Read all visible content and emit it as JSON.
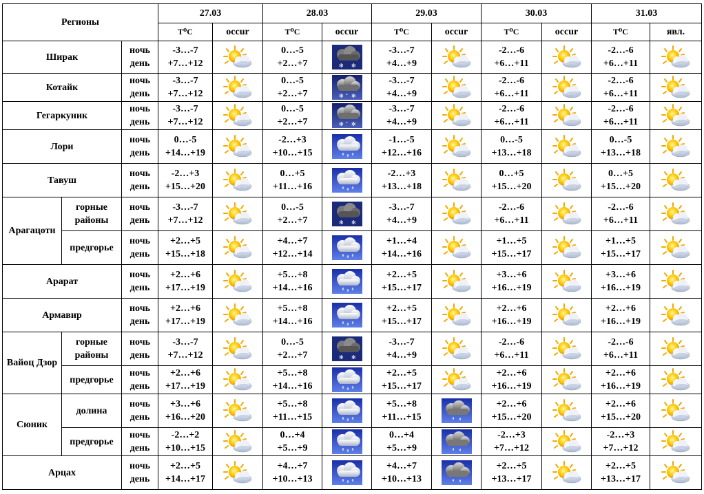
{
  "header": {
    "regions_label": "Регионы",
    "dates": [
      "27.03",
      "28.03",
      "29.03",
      "30.03",
      "31.03"
    ],
    "temp_label": "T⁰C",
    "phen_labels": [
      "occur",
      "occur",
      "occur",
      "occur",
      "явл."
    ]
  },
  "period": {
    "night": "ночь",
    "day": "день"
  },
  "icon_legend": {
    "sun": "partly-sunny-icon",
    "rain": "rain-cloud-icon",
    "snow": "snow-cloud-icon",
    "dark": "snow-cloud-dark-icon",
    "cloud": "overcast-rain-icon"
  },
  "regions": [
    {
      "name": "Ширак",
      "sub": "",
      "group": "",
      "days": [
        {
          "n": "-3…-7",
          "d": "+7…+12",
          "icon": "sun"
        },
        {
          "n": "0…-5",
          "d": "+2…+7",
          "icon": "dark"
        },
        {
          "n": "-3…-7",
          "d": "+4…+9",
          "icon": "sun"
        },
        {
          "n": "-2…-6",
          "d": "+6…+11",
          "icon": "sun"
        },
        {
          "n": "-2…-6",
          "d": "+6…+11",
          "icon": "sun"
        }
      ]
    },
    {
      "name": "Котайк",
      "sub": "",
      "group": "",
      "days": [
        {
          "n": "-3…-7",
          "d": "+7…+12",
          "icon": "sun"
        },
        {
          "n": "0…-5",
          "d": "+2…+7",
          "icon": "snow"
        },
        {
          "n": "-3…-7",
          "d": "+4…+9",
          "icon": "sun"
        },
        {
          "n": "-2…-6",
          "d": "+6…+11",
          "icon": "sun"
        },
        {
          "n": "-2…-6",
          "d": "+6…+11",
          "icon": "sun"
        }
      ]
    },
    {
      "name": "Гегаркуник",
      "sub": "",
      "group": "",
      "days": [
        {
          "n": "-3…-7",
          "d": "+7…+12",
          "icon": "sun"
        },
        {
          "n": "0…-5",
          "d": "+2…+7",
          "icon": "snow"
        },
        {
          "n": "-3…-7",
          "d": "+4…+9",
          "icon": "sun"
        },
        {
          "n": "-2…-6",
          "d": "+6…+11",
          "icon": "sun"
        },
        {
          "n": "-2…-6",
          "d": "+6…+11",
          "icon": "sun"
        }
      ]
    },
    {
      "name": "Лори",
      "sub": "",
      "group": "",
      "days": [
        {
          "n": "0…-5",
          "d": "+14…+19",
          "icon": "sun"
        },
        {
          "n": "-2…+3",
          "d": "+10…+15",
          "icon": "rain"
        },
        {
          "n": "-1…-5",
          "d": "+12…+16",
          "icon": "sun"
        },
        {
          "n": "0…-5",
          "d": "+13…+18",
          "icon": "sun"
        },
        {
          "n": "0…-5",
          "d": "+13…+18",
          "icon": "sun"
        }
      ]
    },
    {
      "name": "Тавуш",
      "sub": "",
      "group": "",
      "days": [
        {
          "n": "-2…+3",
          "d": "+15…+20",
          "icon": "sun"
        },
        {
          "n": "0…+5",
          "d": "+11…+16",
          "icon": "rain"
        },
        {
          "n": "-2…+3",
          "d": "+13…+18",
          "icon": "sun"
        },
        {
          "n": "0…+5",
          "d": "+15…+20",
          "icon": "sun"
        },
        {
          "n": "0…+5",
          "d": "+15…+20",
          "icon": "sun"
        }
      ]
    },
    {
      "name": "",
      "sub": "горные районы",
      "group": "Арагацотн",
      "days": [
        {
          "n": "-3…-7",
          "d": "+7…+12",
          "icon": "sun"
        },
        {
          "n": "0…-5",
          "d": "+2…+7",
          "icon": "dark"
        },
        {
          "n": "-3…-7",
          "d": "+4…+9",
          "icon": "sun"
        },
        {
          "n": "-2…-6",
          "d": "+6…+11",
          "icon": "sun"
        },
        {
          "n": "-2…-6",
          "d": "+6…+11",
          "icon": "sun"
        }
      ]
    },
    {
      "name": "",
      "sub": "предгорье",
      "group": "Арагацотн",
      "days": [
        {
          "n": "+2…+5",
          "d": "+15…+18",
          "icon": "sun"
        },
        {
          "n": "+4…+7",
          "d": "+12…+14",
          "icon": "rain"
        },
        {
          "n": "+1…+4",
          "d": "+14…+16",
          "icon": "sun"
        },
        {
          "n": "+1…+5",
          "d": "+15…+17",
          "icon": "sun"
        },
        {
          "n": "+1…+5",
          "d": "+15…+17",
          "icon": "sun"
        }
      ]
    },
    {
      "name": "Арарат",
      "sub": "",
      "group": "",
      "days": [
        {
          "n": "+2…+6",
          "d": "+17…+19",
          "icon": "sun"
        },
        {
          "n": "+5…+8",
          "d": "+14…+16",
          "icon": "rain"
        },
        {
          "n": "+2…+5",
          "d": "+15…+17",
          "icon": "sun"
        },
        {
          "n": "+3…+6",
          "d": "+16…+19",
          "icon": "sun"
        },
        {
          "n": "+3…+6",
          "d": "+16…+19",
          "icon": "sun"
        }
      ]
    },
    {
      "name": "Армавир",
      "sub": "",
      "group": "",
      "days": [
        {
          "n": "+2…+6",
          "d": "+17…+19",
          "icon": "sun"
        },
        {
          "n": "+5…+8",
          "d": "+14…+16",
          "icon": "rain"
        },
        {
          "n": "+2…+5",
          "d": "+15…+17",
          "icon": "sun"
        },
        {
          "n": "+2…+6",
          "d": "+16…+19",
          "icon": "sun"
        },
        {
          "n": "+2…+6",
          "d": "+16…+19",
          "icon": "sun"
        }
      ]
    },
    {
      "name": "",
      "sub": "горные районы",
      "group": "Вайоц Дзор",
      "days": [
        {
          "n": "-3…-7",
          "d": "+7…+12",
          "icon": "sun"
        },
        {
          "n": "0…-5",
          "d": "+2…+7",
          "icon": "dark"
        },
        {
          "n": "-3…-7",
          "d": "+4…+9",
          "icon": "sun"
        },
        {
          "n": "-2…-6",
          "d": "+6…+11",
          "icon": "sun"
        },
        {
          "n": "-2…-6",
          "d": "+6…+11",
          "icon": "sun"
        }
      ]
    },
    {
      "name": "",
      "sub": "предгорье",
      "group": "Вайоц Дзор",
      "days": [
        {
          "n": "+2…+6",
          "d": "+17…+19",
          "icon": "sun"
        },
        {
          "n": "+5…+8",
          "d": "+14…+16",
          "icon": "rain"
        },
        {
          "n": "+2…+5",
          "d": "+15…+17",
          "icon": "sun"
        },
        {
          "n": "+2…+6",
          "d": "+16…+19",
          "icon": "sun"
        },
        {
          "n": "+2…+6",
          "d": "+16…+19",
          "icon": "sun"
        }
      ]
    },
    {
      "name": "",
      "sub": "долина",
      "group": "Сюник",
      "days": [
        {
          "n": "+3…+6",
          "d": "+16…+20",
          "icon": "sun"
        },
        {
          "n": "+5…+8",
          "d": "+11…+15",
          "icon": "rain"
        },
        {
          "n": "+5…+8",
          "d": "+11…+15",
          "icon": "cloud"
        },
        {
          "n": "+2…+6",
          "d": "+15…+20",
          "icon": "sun"
        },
        {
          "n": "+2…+6",
          "d": "+15…+20",
          "icon": "sun"
        }
      ]
    },
    {
      "name": "",
      "sub": "предгорье",
      "group": "Сюник",
      "days": [
        {
          "n": "-2…+2",
          "d": "+10…+15",
          "icon": "sun"
        },
        {
          "n": "0…+4",
          "d": "+5…+9",
          "icon": "rain"
        },
        {
          "n": "0…+4",
          "d": "+5…+9",
          "icon": "cloud"
        },
        {
          "n": "-2…+3",
          "d": "+7…+12",
          "icon": "sun"
        },
        {
          "n": "-2…+3",
          "d": "+7…+12",
          "icon": "sun"
        }
      ]
    },
    {
      "name": "Арцах",
      "sub": "",
      "group": "",
      "days": [
        {
          "n": "+2…+5",
          "d": "+14…+17",
          "icon": "sun"
        },
        {
          "n": "+4…+7",
          "d": "+10…+13",
          "icon": "rain"
        },
        {
          "n": "+4…+7",
          "d": "+10…+13",
          "icon": "cloud"
        },
        {
          "n": "+2…+5",
          "d": "+13…+17",
          "icon": "sun"
        },
        {
          "n": "+2…+5",
          "d": "+13…+17",
          "icon": "sun"
        }
      ]
    }
  ]
}
